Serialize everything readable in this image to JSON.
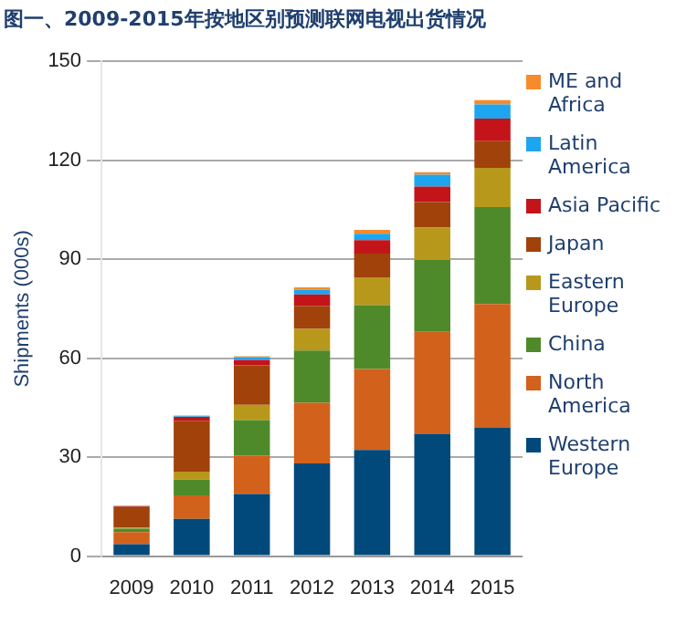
{
  "chart_data": {
    "type": "bar",
    "title": "图一、2009-2015年按地区别预测联网电视出货情况",
    "ylabel": "Shipments (000s)",
    "categories": [
      "2009",
      "2010",
      "2011",
      "2012",
      "2013",
      "2014",
      "2015"
    ],
    "stacked": true,
    "ylim": [
      0,
      150
    ],
    "yticks": [
      0,
      30,
      60,
      90,
      120,
      150
    ],
    "grid": "y",
    "legend": "right",
    "series": [
      {
        "name": "Western Europe",
        "color": "#00497a",
        "values": [
          3.6,
          11.3,
          18.8,
          28.1,
          32.2,
          37.1,
          39.0
        ]
      },
      {
        "name": "North America",
        "color": "#d2611c",
        "values": [
          3.7,
          7.1,
          11.7,
          18.4,
          24.5,
          30.9,
          37.4
        ]
      },
      {
        "name": "China",
        "color": "#4f8a2a",
        "values": [
          1.0,
          4.8,
          10.7,
          15.8,
          19.4,
          21.8,
          29.4
        ]
      },
      {
        "name": "Eastern Europe",
        "color": "#b8981a",
        "values": [
          0.4,
          2.4,
          4.7,
          6.6,
          8.4,
          9.8,
          11.9
        ]
      },
      {
        "name": "Japan",
        "color": "#a0420a",
        "values": [
          6.2,
          15.4,
          11.9,
          7.0,
          7.2,
          7.7,
          8.1
        ]
      },
      {
        "name": "Asia Pacific",
        "color": "#c3141a",
        "values": [
          0.2,
          1.2,
          1.7,
          3.4,
          4.1,
          4.7,
          6.8
        ]
      },
      {
        "name": "Latin America",
        "color": "#1ea5ef",
        "values": [
          0.1,
          0.2,
          0.8,
          1.5,
          1.9,
          3.6,
          4.3
        ]
      },
      {
        "name": "ME and Africa",
        "color": "#f68b2c",
        "values": [
          0.1,
          0.2,
          0.3,
          0.7,
          1.2,
          0.8,
          1.3
        ]
      }
    ]
  }
}
